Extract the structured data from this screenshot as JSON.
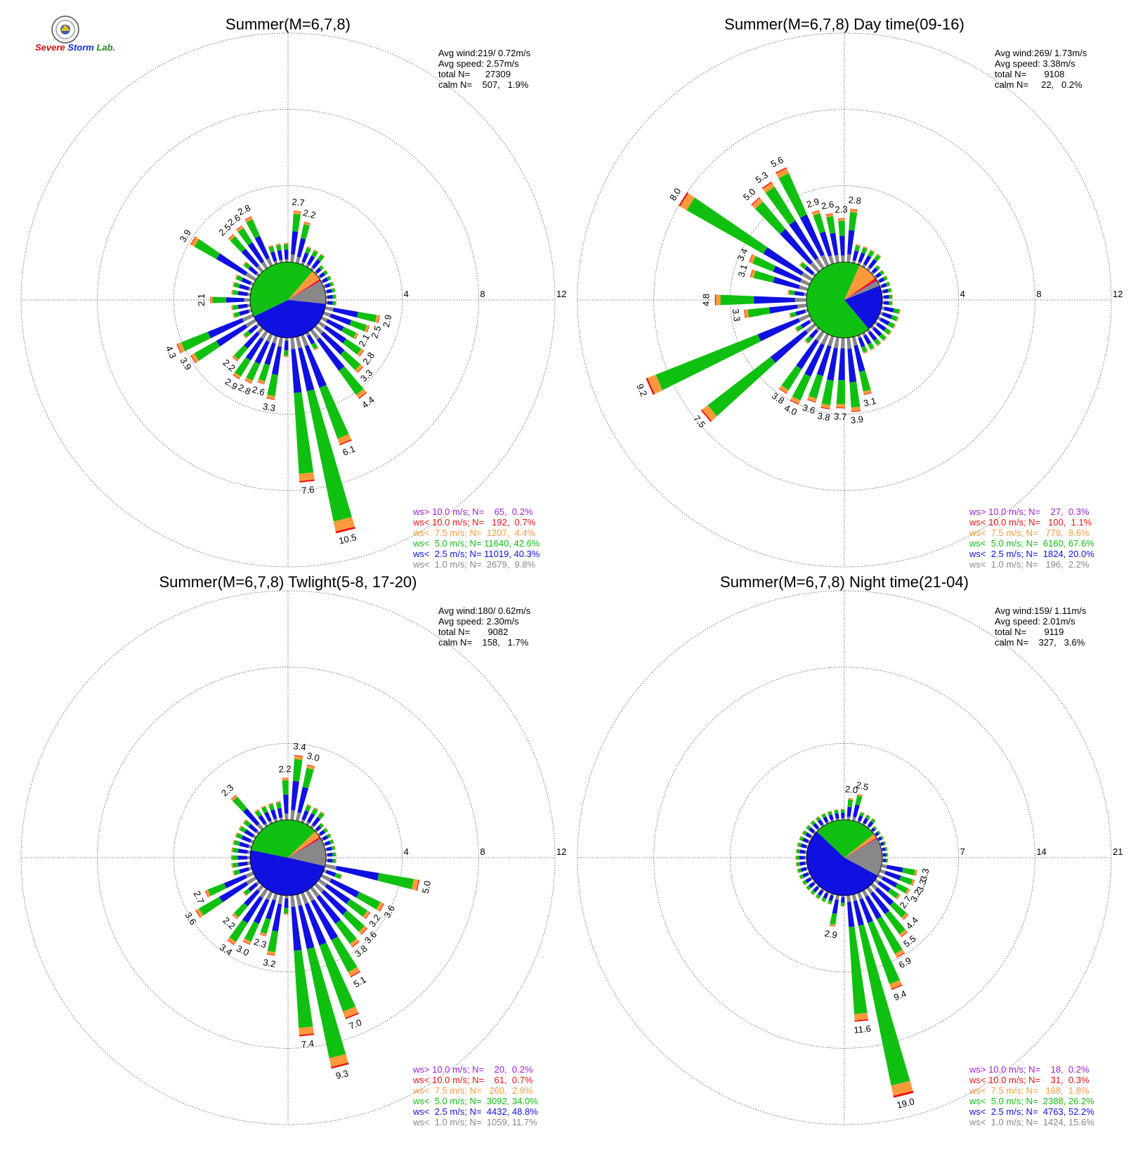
{
  "logo": {
    "text_severe": "Severe",
    "text_storm": "Storm",
    "text_lab": "Lab."
  },
  "chart_data": [
    {
      "type": "windrose",
      "title": "Summer(M=6,7,8)",
      "ring_labels": [
        "4",
        "8",
        "12"
      ],
      "rmax": 12,
      "stats": [
        "Avg wind:219/ 0.72m/s",
        "Avg speed: 2.57m/s",
        "total N=      27309",
        "calm N=    507,   1.9%"
      ],
      "legend": [
        {
          "text": "ws> 10.0 m/s; N=    65,  0.2%",
          "color": "#9b1fd8"
        },
        {
          "text": "ws< 10.0 m/s; N=   192,  0.7%",
          "color": "#ee1111"
        },
        {
          "text": "ws<  7.5 m/s; N=  1207,  4.4%",
          "color": "#ff9a3c"
        },
        {
          "text": "ws<  5.0 m/s; N= 11640, 42.6%",
          "color": "#10c010"
        },
        {
          "text": "ws<  2.5 m/s; N= 11019, 40.3%",
          "color": "#1010e0"
        },
        {
          "text": "ws<  1.0 m/s; N=  2679,  9.8%",
          "color": "#888888"
        }
      ],
      "inner_pie": [
        9.8,
        40.3,
        42.6,
        4.4,
        0.7,
        0.2
      ],
      "inner_pie_order": [
        "gray",
        "blue",
        "green",
        "orange",
        "red",
        "purple"
      ],
      "labeled_bars": [
        {
          "dir": 6,
          "total": 2.7
        },
        {
          "dir": 14,
          "total": 2.2
        },
        {
          "dir": 102,
          "total": 2.9
        },
        {
          "dir": 110,
          "total": 2.5
        },
        {
          "dir": 118,
          "total": 2.1
        },
        {
          "dir": 126,
          "total": 2.8
        },
        {
          "dir": 134,
          "total": 3.3
        },
        {
          "dir": 142,
          "total": 4.4
        },
        {
          "dir": 158,
          "total": 6.1
        },
        {
          "dir": 166,
          "total": 10.5
        },
        {
          "dir": 174,
          "total": 7.6
        },
        {
          "dir": 190,
          "total": 3.3
        },
        {
          "dir": 198,
          "total": 2.6
        },
        {
          "dir": 206,
          "total": 2.8
        },
        {
          "dir": 214,
          "total": 2.9
        },
        {
          "dir": 222,
          "total": 2.2
        },
        {
          "dir": 238,
          "total": 3.9
        },
        {
          "dir": 246,
          "total": 4.3
        },
        {
          "dir": 270,
          "total": 2.1
        },
        {
          "dir": 302,
          "total": 3.9
        },
        {
          "dir": 318,
          "total": 2.5
        },
        {
          "dir": 326,
          "total": 2.6
        },
        {
          "dir": 334,
          "total": 2.8
        }
      ]
    },
    {
      "type": "windrose",
      "title": "Summer(M=6,7,8) Day time(09-16)",
      "ring_labels": [
        "4",
        "8",
        "12"
      ],
      "rmax": 12,
      "stats": [
        "Avg wind:269/ 1.73m/s",
        "Avg speed: 3.38m/s",
        "total N=       9108",
        "calm N=     22,   0.2%"
      ],
      "legend": [
        {
          "text": "ws> 10.0 m/s; N=    27,  0.3%",
          "color": "#9b1fd8"
        },
        {
          "text": "ws< 10.0 m/s; N=   100,  1.1%",
          "color": "#ee1111"
        },
        {
          "text": "ws<  7.5 m/s; N=   779,  8.6%",
          "color": "#ff9a3c"
        },
        {
          "text": "ws<  5.0 m/s; N=  6160, 67.6%",
          "color": "#10c010"
        },
        {
          "text": "ws<  2.5 m/s; N=  1824, 20.0%",
          "color": "#1010e0"
        },
        {
          "text": "ws<  1.0 m/s; N=   196,  2.2%",
          "color": "#888888"
        }
      ],
      "inner_pie": [
        2.2,
        20.0,
        67.6,
        8.6,
        1.1,
        0.3
      ],
      "inner_pie_order": [
        "gray",
        "blue",
        "green",
        "orange",
        "red",
        "purple"
      ],
      "labeled_bars": [
        {
          "dir": 342,
          "total": 2.9
        },
        {
          "dir": 350,
          "total": 2.6
        },
        {
          "dir": 358,
          "total": 2.3
        },
        {
          "dir": 6,
          "total": 2.8
        },
        {
          "dir": 334,
          "total": 5.6
        },
        {
          "dir": 326,
          "total": 5.3
        },
        {
          "dir": 318,
          "total": 5.0
        },
        {
          "dir": 302,
          "total": 8.0
        },
        {
          "dir": 294,
          "total": 3.4
        },
        {
          "dir": 286,
          "total": 3.1
        },
        {
          "dir": 270,
          "total": 4.8
        },
        {
          "dir": 262,
          "total": 3.3
        },
        {
          "dir": 246,
          "total": 9.2
        },
        {
          "dir": 230,
          "total": 7.5
        },
        {
          "dir": 214,
          "total": 3.8
        },
        {
          "dir": 206,
          "total": 4.0
        },
        {
          "dir": 198,
          "total": 3.6
        },
        {
          "dir": 190,
          "total": 3.8
        },
        {
          "dir": 182,
          "total": 3.7
        },
        {
          "dir": 174,
          "total": 3.9
        },
        {
          "dir": 166,
          "total": 3.1
        }
      ]
    },
    {
      "type": "windrose",
      "title": "Summer(M=6,7,8) Twlight(5-8, 17-20)",
      "ring_labels": [
        "4",
        "8",
        "12"
      ],
      "rmax": 12,
      "stats": [
        "Avg wind:180/ 0.62m/s",
        "Avg speed: 2.30m/s",
        "total N=       9082",
        "calm N=    158,   1.7%"
      ],
      "legend": [
        {
          "text": "ws> 10.0 m/s; N=    20,  0.2%",
          "color": "#9b1fd8"
        },
        {
          "text": "ws< 10.0 m/s; N=    61,  0.7%",
          "color": "#ee1111"
        },
        {
          "text": "ws<  7.5 m/s; N=   260,  2.9%",
          "color": "#ff9a3c"
        },
        {
          "text": "ws<  5.0 m/s; N=  3092, 34.0%",
          "color": "#10c010"
        },
        {
          "text": "ws<  2.5 m/s; N=  4432, 48.8%",
          "color": "#1010e0"
        },
        {
          "text": "ws<  1.0 m/s; N=  1059, 11.7%",
          "color": "#888888"
        }
      ],
      "inner_pie": [
        11.7,
        48.8,
        34.0,
        2.9,
        0.7,
        0.2
      ],
      "inner_pie_order": [
        "gray",
        "blue",
        "green",
        "orange",
        "red",
        "purple"
      ],
      "labeled_bars": [
        {
          "dir": 6,
          "total": 3.4
        },
        {
          "dir": 14,
          "total": 3.0
        },
        {
          "dir": 358,
          "total": 2.2
        },
        {
          "dir": 318,
          "total": 2.3
        },
        {
          "dir": 102,
          "total": 5.0
        },
        {
          "dir": 118,
          "total": 3.6
        },
        {
          "dir": 126,
          "total": 3.2
        },
        {
          "dir": 134,
          "total": 3.6
        },
        {
          "dir": 142,
          "total": 3.8
        },
        {
          "dir": 150,
          "total": 5.1
        },
        {
          "dir": 158,
          "total": 7.0
        },
        {
          "dir": 166,
          "total": 9.3
        },
        {
          "dir": 174,
          "total": 7.4
        },
        {
          "dir": 190,
          "total": 3.2
        },
        {
          "dir": 198,
          "total": 2.3
        },
        {
          "dir": 206,
          "total": 3.0
        },
        {
          "dir": 214,
          "total": 3.4
        },
        {
          "dir": 222,
          "total": 2.2
        },
        {
          "dir": 238,
          "total": 3.6
        },
        {
          "dir": 246,
          "total": 2.7
        }
      ]
    },
    {
      "type": "windrose",
      "title": "Summer(M=6,7,8) Night time(21-04)",
      "ring_labels": [
        "7",
        "14",
        "21"
      ],
      "rmax": 21,
      "stats": [
        "Avg wind:159/ 1.11m/s",
        "Avg speed: 2.01m/s",
        "total N=       9119",
        "calm N=    327,   3.6%"
      ],
      "legend": [
        {
          "text": "ws> 10.0 m/s; N=    18,  0.2%",
          "color": "#9b1fd8"
        },
        {
          "text": "ws< 10.0 m/s; N=    31,  0.3%",
          "color": "#ee1111"
        },
        {
          "text": "ws<  7.5 m/s; N=   168,  1.8%",
          "color": "#ff9a3c"
        },
        {
          "text": "ws<  5.0 m/s; N=  2388, 26.2%",
          "color": "#10c010"
        },
        {
          "text": "ws<  2.5 m/s; N=  4763, 52.2%",
          "color": "#1010e0"
        },
        {
          "text": "ws<  1.0 m/s; N=  1424, 15.6%",
          "color": "#888888"
        }
      ],
      "inner_pie": [
        15.6,
        52.2,
        26.2,
        1.8,
        0.3,
        0.2
      ],
      "inner_pie_order": [
        "gray",
        "blue",
        "green",
        "orange",
        "red",
        "purple"
      ],
      "labeled_bars": [
        {
          "dir": 6,
          "total": 2.0
        },
        {
          "dir": 14,
          "total": 2.5
        },
        {
          "dir": 102,
          "total": 3.3
        },
        {
          "dir": 110,
          "total": 3.3
        },
        {
          "dir": 118,
          "total": 3.2
        },
        {
          "dir": 126,
          "total": 2.7
        },
        {
          "dir": 134,
          "total": 4.4
        },
        {
          "dir": 142,
          "total": 5.5
        },
        {
          "dir": 150,
          "total": 6.9
        },
        {
          "dir": 158,
          "total": 9.4
        },
        {
          "dir": 166,
          "total": 19.0
        },
        {
          "dir": 174,
          "total": 11.6
        },
        {
          "dir": 190,
          "total": 2.9
        }
      ]
    }
  ]
}
